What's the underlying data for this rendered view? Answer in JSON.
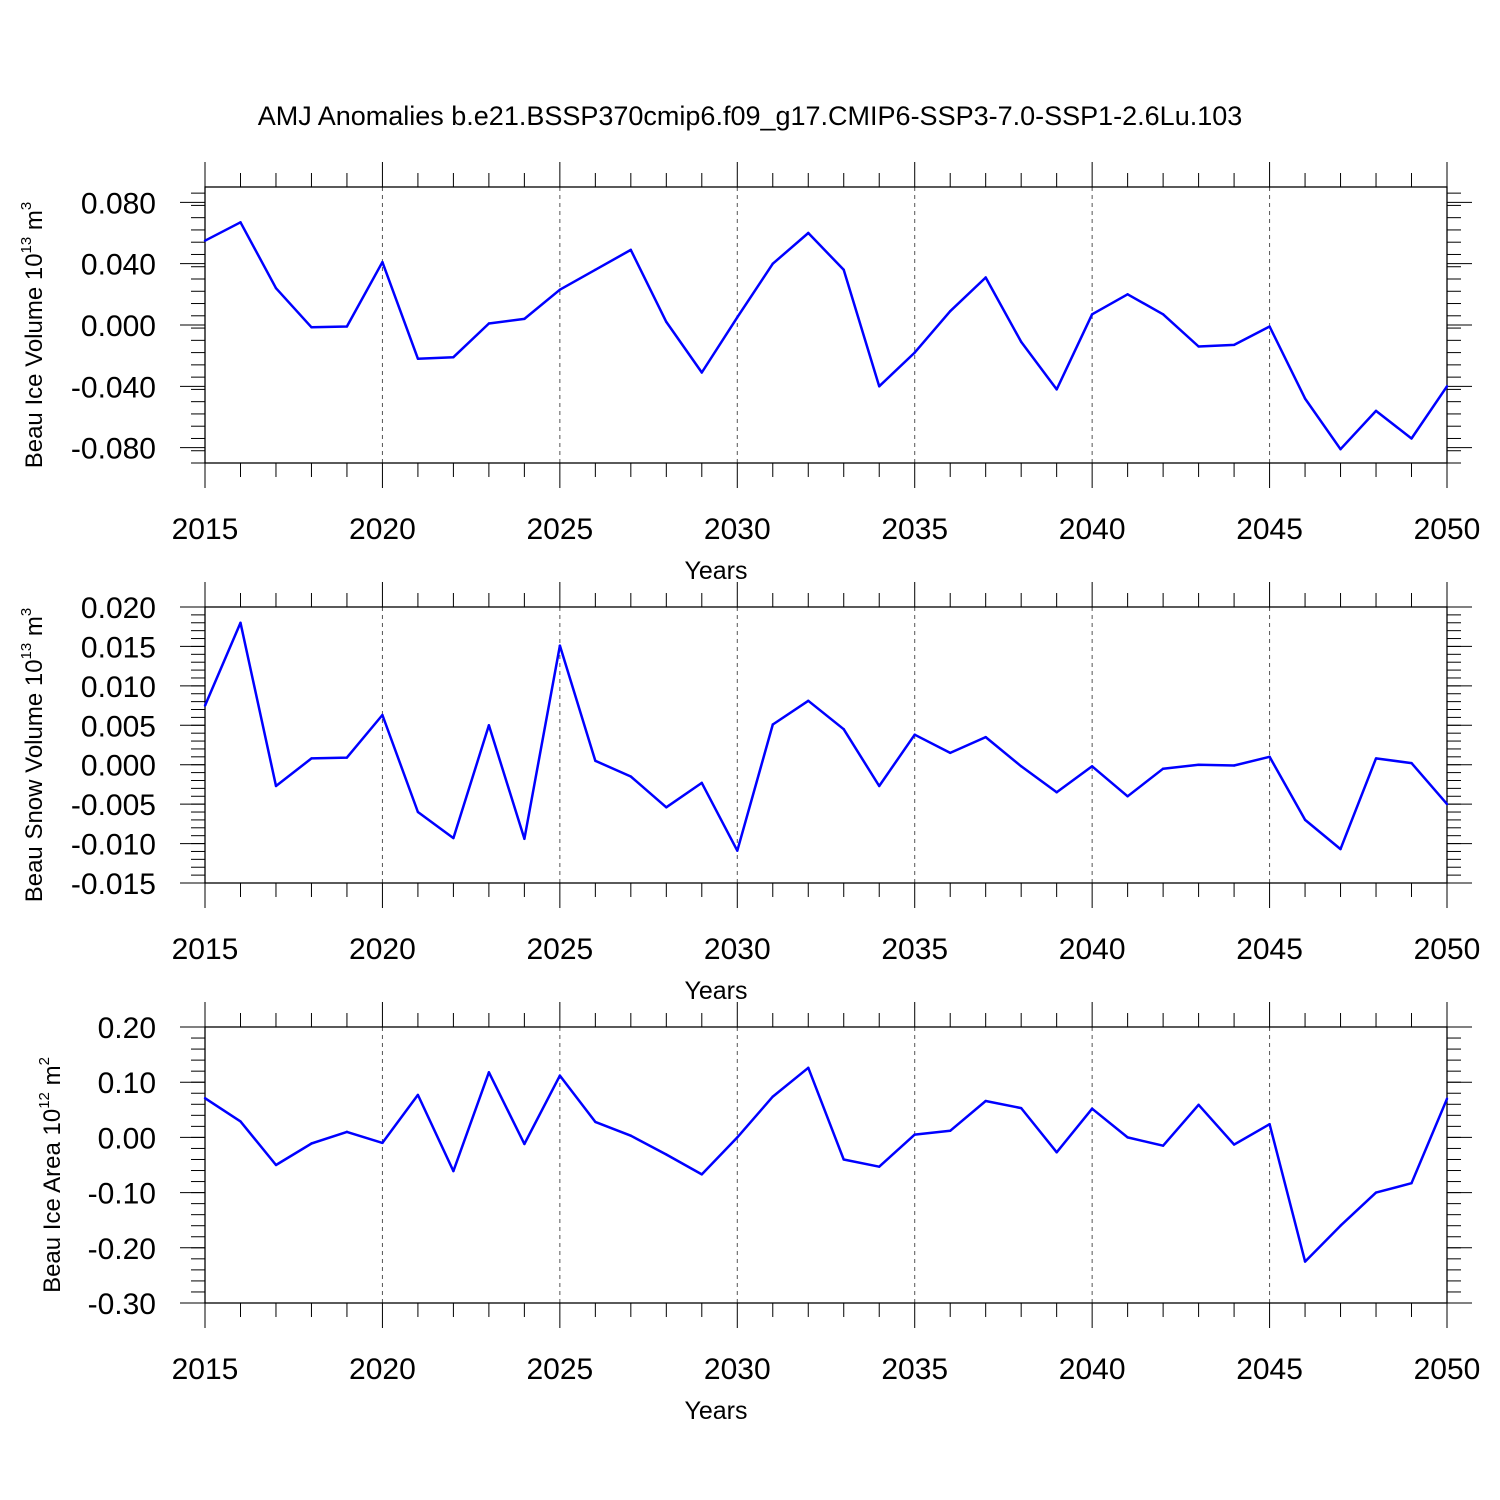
{
  "title": "AMJ Anomalies b.e21.BSSP370cmip6.f09_g17.CMIP6-SSP3-7.0-SSP1-2.6Lu.103",
  "line_color": "#0000ff",
  "chart_data": [
    {
      "type": "line",
      "ylabel_text": "Beau Ice Volume 10",
      "ylabel_exp": "13",
      "ylabel_unit": " m",
      "ylabel_unit_exp": "3",
      "xlabel": "Years",
      "xlim": [
        2015,
        2050
      ],
      "ylim": [
        -0.09,
        0.09
      ],
      "xticks": [
        "2015",
        "2020",
        "2025",
        "2030",
        "2035",
        "2040",
        "2045",
        "2050"
      ],
      "yticks": [
        {
          "value": -0.08,
          "label": "-0.080"
        },
        {
          "value": -0.04,
          "label": "-0.040"
        },
        {
          "value": 0.0,
          "label": "0.000"
        },
        {
          "value": 0.04,
          "label": "0.040"
        },
        {
          "value": 0.08,
          "label": "0.080"
        }
      ],
      "x": [
        2015,
        2016,
        2017,
        2018,
        2019,
        2020,
        2021,
        2022,
        2023,
        2024,
        2025,
        2026,
        2027,
        2028,
        2029,
        2030,
        2031,
        2032,
        2033,
        2034,
        2035,
        2036,
        2037,
        2038,
        2039,
        2040,
        2041,
        2042,
        2043,
        2044,
        2045,
        2046,
        2047,
        2048,
        2049,
        2050
      ],
      "values": [
        0.055,
        0.067,
        0.024,
        -0.0015,
        -0.001,
        0.041,
        -0.022,
        -0.021,
        0.001,
        0.004,
        0.023,
        0.036,
        0.049,
        0.002,
        -0.031,
        0.005,
        0.04,
        0.06,
        0.036,
        -0.04,
        -0.018,
        0.009,
        0.031,
        -0.011,
        -0.042,
        0.007,
        0.02,
        0.007,
        -0.014,
        -0.013,
        -0.001,
        -0.048,
        -0.081,
        -0.056,
        -0.074,
        -0.04
      ]
    },
    {
      "type": "line",
      "ylabel_text": "Beau Snow Volume 10",
      "ylabel_exp": "13",
      "ylabel_unit": " m",
      "ylabel_unit_exp": "3",
      "xlabel": "Years",
      "xlim": [
        2015,
        2050
      ],
      "ylim": [
        -0.015,
        0.02
      ],
      "xticks": [
        "2015",
        "2020",
        "2025",
        "2030",
        "2035",
        "2040",
        "2045",
        "2050"
      ],
      "yticks": [
        {
          "value": -0.015,
          "label": "-0.015"
        },
        {
          "value": -0.01,
          "label": "-0.010"
        },
        {
          "value": -0.005,
          "label": "-0.005"
        },
        {
          "value": 0.0,
          "label": "0.000"
        },
        {
          "value": 0.005,
          "label": "0.005"
        },
        {
          "value": 0.01,
          "label": "0.010"
        },
        {
          "value": 0.015,
          "label": "0.015"
        },
        {
          "value": 0.02,
          "label": "0.020"
        }
      ],
      "x": [
        2015,
        2016,
        2017,
        2018,
        2019,
        2020,
        2021,
        2022,
        2023,
        2024,
        2025,
        2026,
        2027,
        2028,
        2029,
        2030,
        2031,
        2032,
        2033,
        2034,
        2035,
        2036,
        2037,
        2038,
        2039,
        2040,
        2041,
        2042,
        2043,
        2044,
        2045,
        2046,
        2047,
        2048,
        2049,
        2050
      ],
      "values": [
        0.0075,
        0.018,
        -0.0027,
        0.0008,
        0.0009,
        0.0063,
        -0.006,
        -0.0093,
        0.005,
        -0.0094,
        0.0151,
        0.0005,
        -0.0015,
        -0.0054,
        -0.0023,
        -0.0109,
        0.0051,
        0.0081,
        0.0045,
        -0.0027,
        0.0038,
        0.0015,
        0.0035,
        -0.0002,
        -0.0035,
        -0.0002,
        -0.004,
        -0.0005,
        0.0,
        -0.0001,
        0.001,
        -0.007,
        -0.0107,
        0.0008,
        0.0002,
        -0.005
      ]
    },
    {
      "type": "line",
      "ylabel_text": "Beau Ice Area 10",
      "ylabel_exp": "12",
      "ylabel_unit": " m",
      "ylabel_unit_exp": "2",
      "xlabel": "Years",
      "xlim": [
        2015,
        2050
      ],
      "ylim": [
        -0.3,
        0.2
      ],
      "xticks": [
        "2015",
        "2020",
        "2025",
        "2030",
        "2035",
        "2040",
        "2045",
        "2050"
      ],
      "yticks": [
        {
          "value": -0.3,
          "label": "-0.30"
        },
        {
          "value": -0.2,
          "label": "-0.20"
        },
        {
          "value": -0.1,
          "label": "-0.10"
        },
        {
          "value": 0.0,
          "label": "0.00"
        },
        {
          "value": 0.1,
          "label": "0.10"
        },
        {
          "value": 0.2,
          "label": "0.20"
        }
      ],
      "x": [
        2015,
        2016,
        2017,
        2018,
        2019,
        2020,
        2021,
        2022,
        2023,
        2024,
        2025,
        2026,
        2027,
        2028,
        2029,
        2030,
        2031,
        2032,
        2033,
        2034,
        2035,
        2036,
        2037,
        2038,
        2039,
        2040,
        2041,
        2042,
        2043,
        2044,
        2045,
        2046,
        2047,
        2048,
        2049,
        2050
      ],
      "values": [
        0.071,
        0.029,
        -0.05,
        -0.011,
        0.01,
        -0.01,
        0.077,
        -0.061,
        0.118,
        -0.012,
        0.112,
        0.028,
        0.003,
        -0.031,
        -0.067,
        0.0,
        0.074,
        0.126,
        -0.04,
        -0.053,
        0.005,
        0.012,
        0.066,
        0.053,
        -0.027,
        0.052,
        0.0,
        -0.015,
        0.059,
        -0.013,
        0.024,
        -0.225,
        -0.16,
        -0.1,
        -0.083,
        0.07
      ]
    }
  ]
}
